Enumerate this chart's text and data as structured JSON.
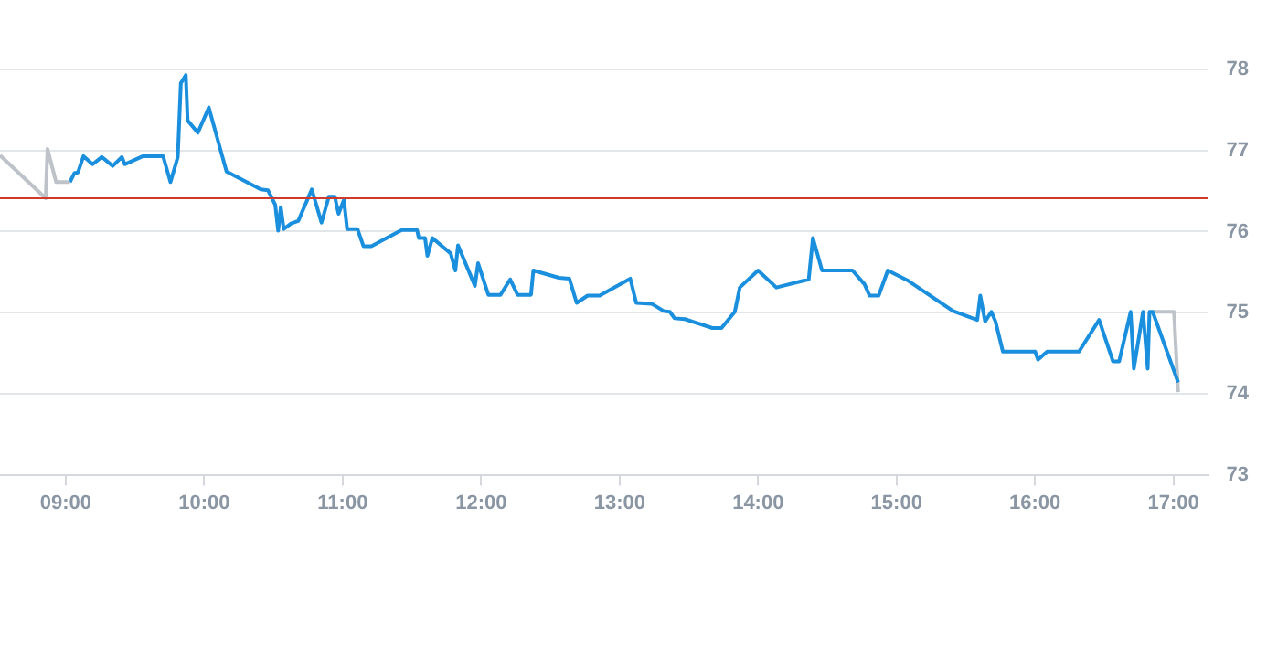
{
  "chart_data": {
    "type": "line",
    "series": [
      {
        "color": "#bdc3c8",
        "x": [
          8.525,
          8.855,
          8.868,
          8.93,
          9.03
        ],
        "values": [
          76.94,
          76.41,
          77.02,
          76.61,
          76.61
        ]
      },
      {
        "color": "#1a8fdd",
        "x": [
          9.03,
          9.062,
          9.088,
          9.128,
          9.194,
          9.26,
          9.339,
          9.405,
          9.426,
          9.558,
          9.703,
          9.756,
          9.809,
          9.831,
          9.867,
          9.88,
          9.954,
          10.033,
          10.161,
          10.408,
          10.46,
          10.513,
          10.534,
          10.553,
          10.574,
          10.627,
          10.679,
          10.777,
          10.847,
          10.9,
          10.943,
          10.97,
          11.009,
          11.032,
          11.107,
          11.15,
          11.207,
          11.427,
          11.537,
          11.55,
          11.595,
          11.612,
          11.648,
          11.78,
          11.814,
          11.833,
          11.955,
          11.978,
          12.052,
          12.14,
          12.21,
          12.263,
          12.36,
          12.377,
          12.562,
          12.637,
          12.69,
          12.769,
          12.856,
          13.077,
          13.12,
          13.231,
          13.318,
          13.363,
          13.397,
          13.472,
          13.67,
          13.736,
          13.832,
          13.868,
          14.0,
          14.132,
          14.366,
          14.396,
          14.462,
          14.682,
          14.769,
          14.805,
          14.871,
          14.937,
          15.078,
          15.408,
          15.583,
          15.605,
          15.64,
          15.685,
          15.715,
          15.768,
          16.001,
          16.022,
          16.088,
          16.318,
          16.463,
          16.563,
          16.608,
          16.691,
          16.714,
          16.78,
          16.814,
          16.827,
          16.85,
          17.034
        ],
        "values": [
          76.61,
          76.72,
          76.73,
          76.93,
          76.83,
          76.92,
          76.81,
          76.92,
          76.83,
          76.93,
          76.93,
          76.61,
          76.92,
          77.83,
          77.93,
          77.37,
          77.22,
          77.53,
          76.74,
          76.52,
          76.51,
          76.33,
          76.01,
          76.3,
          76.03,
          76.1,
          76.13,
          76.52,
          76.11,
          76.43,
          76.43,
          76.22,
          76.39,
          76.03,
          76.03,
          75.82,
          75.82,
          76.02,
          76.02,
          75.92,
          75.92,
          75.7,
          75.92,
          75.73,
          75.52,
          75.83,
          75.33,
          75.61,
          75.22,
          75.22,
          75.41,
          75.22,
          75.22,
          75.52,
          75.43,
          75.42,
          75.12,
          75.21,
          75.21,
          75.42,
          75.12,
          75.11,
          75.02,
          75.01,
          74.93,
          74.92,
          74.81,
          74.81,
          75.01,
          75.31,
          75.52,
          75.31,
          75.41,
          75.92,
          75.52,
          75.52,
          75.35,
          75.21,
          75.21,
          75.52,
          75.4,
          75.02,
          74.91,
          75.21,
          74.89,
          75.01,
          74.89,
          74.52,
          74.52,
          74.42,
          74.52,
          74.52,
          74.91,
          74.4,
          74.4,
          75.01,
          74.31,
          75.01,
          74.31,
          75.01,
          75.01,
          74.14
        ]
      },
      {
        "color": "#bdc3c8",
        "x": [
          16.85,
          17.004,
          17.034
        ],
        "values": [
          75.01,
          75.01,
          74.02
        ]
      }
    ],
    "xlim": [
      8.525,
      17.25
    ],
    "xticks": [
      {
        "value": 9,
        "label": "09:00"
      },
      {
        "value": 10,
        "label": "10:00"
      },
      {
        "value": 11,
        "label": "11:00"
      },
      {
        "value": 12,
        "label": "12:00"
      },
      {
        "value": 13,
        "label": "13:00"
      },
      {
        "value": 14,
        "label": "14:00"
      },
      {
        "value": 15,
        "label": "15:00"
      },
      {
        "value": 16,
        "label": "16:00"
      },
      {
        "value": 17,
        "label": "17:00"
      }
    ],
    "ylim": [
      73,
      78
    ],
    "yticks": [
      73,
      74,
      75,
      76,
      77,
      78
    ],
    "grid": "y",
    "marker": "none",
    "line_style": "solid",
    "ref_lines": [
      {
        "axis": "y",
        "value": 76.41,
        "color": "#d0392b"
      }
    ]
  }
}
